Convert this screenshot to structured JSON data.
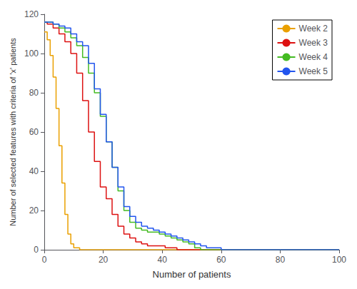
{
  "chart_data": {
    "type": "step",
    "xlabel": "Number of patients",
    "ylabel": "Number of selected features with criteria of 'x' patients",
    "xlim": [
      0,
      100
    ],
    "ylim": [
      0,
      120
    ],
    "xticks": [
      0,
      20,
      40,
      60,
      80,
      100
    ],
    "yticks": [
      0,
      20,
      40,
      60,
      80,
      100,
      120
    ],
    "grid": false,
    "legend": "upper right",
    "series": [
      {
        "name": "Week 2",
        "color": "#EAA000",
        "x": [
          0,
          1,
          2,
          3,
          4,
          5,
          6,
          7,
          8,
          9,
          10,
          11,
          12,
          100
        ],
        "values": [
          111,
          107,
          99,
          88,
          72,
          53,
          34,
          18,
          8,
          3,
          1,
          1,
          0,
          0
        ]
      },
      {
        "name": "Week 3",
        "color": "#DD1111",
        "x": [
          0,
          1,
          3,
          5,
          7,
          9,
          11,
          13,
          15,
          17,
          19,
          21,
          23,
          25,
          27,
          29,
          31,
          33,
          35,
          37,
          39,
          41,
          43,
          45,
          100
        ],
        "values": [
          116,
          115,
          113,
          110,
          106,
          100,
          90,
          76,
          60,
          45,
          32,
          26,
          18,
          12,
          8,
          6,
          4,
          3,
          2,
          2,
          2,
          1,
          1,
          0,
          0
        ]
      },
      {
        "name": "Week 4",
        "color": "#44BB22",
        "x": [
          0,
          1,
          3,
          5,
          7,
          9,
          11,
          13,
          15,
          17,
          19,
          21,
          23,
          25,
          27,
          29,
          31,
          33,
          35,
          37,
          39,
          41,
          43,
          45,
          47,
          49,
          51,
          53,
          100
        ],
        "values": [
          116,
          116,
          115,
          113,
          111,
          108,
          104,
          98,
          90,
          80,
          68,
          55,
          42,
          30,
          20,
          14,
          11,
          10,
          9,
          9,
          8,
          7,
          6,
          5,
          4,
          3,
          1,
          0,
          0
        ]
      },
      {
        "name": "Week 5",
        "color": "#2255EE",
        "x": [
          0,
          1,
          3,
          5,
          7,
          9,
          11,
          13,
          15,
          17,
          19,
          21,
          23,
          25,
          27,
          29,
          31,
          33,
          35,
          37,
          39,
          41,
          43,
          45,
          47,
          49,
          51,
          53,
          55,
          57,
          60,
          100
        ],
        "values": [
          116,
          116,
          115,
          114,
          113,
          110,
          106,
          104,
          95,
          82,
          69,
          55,
          42,
          32,
          22,
          17,
          14,
          12,
          11,
          10,
          9,
          8,
          7,
          6,
          5,
          4,
          3,
          2,
          1,
          1,
          0,
          0
        ]
      }
    ]
  }
}
